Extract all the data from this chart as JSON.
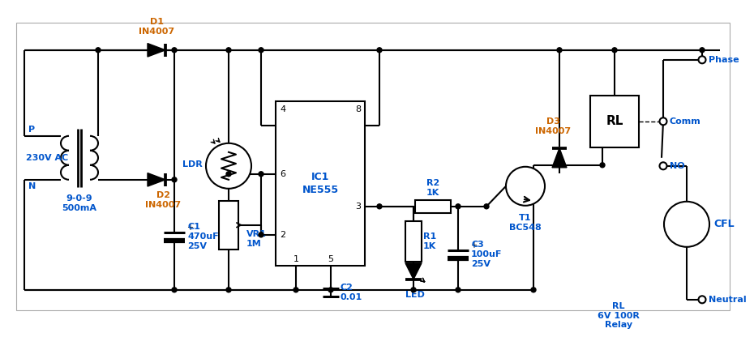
{
  "bg": "#ffffff",
  "lc": "#000000",
  "tc": "#cc6600",
  "bc": "#0055cc",
  "lw": 1.5,
  "labels": {
    "d1": "D1\nIN4007",
    "d2": "D2\nIN4007",
    "d3": "D3\nIN4007",
    "c1": "C1\n470uF\n25V",
    "c2": "C2\n0.01",
    "c3": "C3\n100uF\n25V",
    "r1": "R1\n1K",
    "r2": "R2\n1K",
    "vr1": "VR1\n1M",
    "ldr": "LDR",
    "ic1a": "IC1",
    "ic1b": "NE555",
    "t1": "T1\nBC548",
    "rl_box": "RL",
    "rl_spec": "RL\n6V 100R\nRelay",
    "cfl": "CFL",
    "p": "P",
    "n": "N",
    "ac": "230V AC",
    "tr": "9-0-9\n500mA",
    "phase": "Phase",
    "neutral": "Neutral",
    "comm": "Comm",
    "no": "NO",
    "led": "LED",
    "p4": "4",
    "p8": "8",
    "p6": "6",
    "p3": "3",
    "p2": "2",
    "p1": "1",
    "p5": "5"
  }
}
